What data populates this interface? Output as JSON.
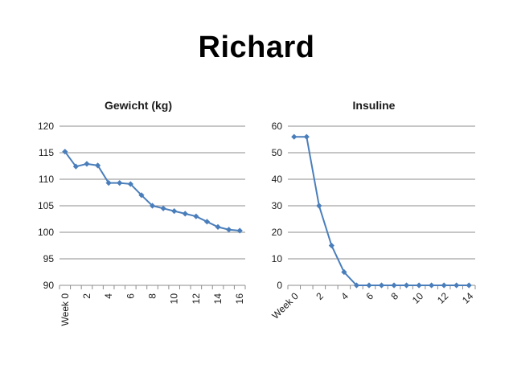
{
  "slide": {
    "title": "Richard"
  },
  "chart_data": [
    {
      "type": "line",
      "title": "Gewicht (kg)",
      "x": [
        0,
        1,
        2,
        3,
        4,
        5,
        6,
        7,
        8,
        9,
        10,
        11,
        12,
        13,
        14,
        15,
        16
      ],
      "series": [
        {
          "values": [
            115.2,
            112.4,
            112.9,
            112.6,
            109.3,
            109.3,
            109.1,
            107.0,
            105.0,
            104.5,
            104.0,
            103.5,
            103.0,
            102.0,
            101.0,
            100.5,
            100.3
          ]
        }
      ],
      "ylim": [
        90,
        120
      ],
      "yticks": [
        "90",
        "95",
        "100",
        "105",
        "110",
        "115",
        "120"
      ],
      "xtick_labels": [
        "Week 0",
        "2",
        "4",
        "6",
        "8",
        "10",
        "12",
        "14",
        "16"
      ],
      "grid": true,
      "color": "#4a7ebb"
    },
    {
      "type": "line",
      "title": "Insuline",
      "x": [
        0,
        1,
        2,
        3,
        4,
        5,
        6,
        7,
        8,
        9,
        10,
        11,
        12,
        13,
        14
      ],
      "series": [
        {
          "values": [
            56,
            56,
            30,
            15,
            5,
            0,
            0,
            0,
            0,
            0,
            0,
            0,
            0,
            0,
            0
          ]
        }
      ],
      "ylim": [
        0,
        60
      ],
      "yticks": [
        "0",
        "10",
        "20",
        "30",
        "40",
        "50",
        "60"
      ],
      "xtick_labels": [
        "Week 0",
        "2",
        "4",
        "6",
        "8",
        "10",
        "12",
        "14"
      ],
      "grid": true,
      "color": "#4a7ebb"
    }
  ]
}
